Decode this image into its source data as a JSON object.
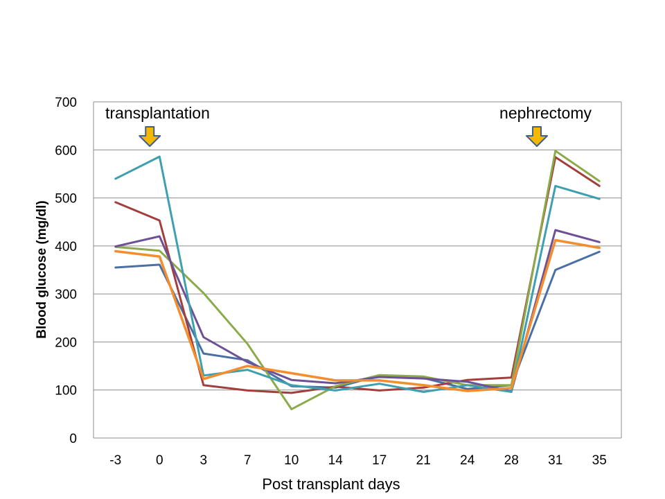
{
  "chart_data": {
    "type": "line",
    "title": "",
    "xlabel": "Post transplant days",
    "ylabel": "Blood glucose (mg/dl)",
    "x": [
      "-3",
      "0",
      "3",
      "7",
      "10",
      "14",
      "17",
      "21",
      "24",
      "28",
      "31",
      "35"
    ],
    "ylim": [
      0,
      700
    ],
    "yticks": [
      0,
      100,
      200,
      300,
      400,
      500,
      600,
      700
    ],
    "grid": true,
    "legend": "none",
    "annotations": [
      {
        "text": "transplantation",
        "at_x": "0",
        "marker": "down-arrow"
      },
      {
        "text": "nephrectomy",
        "at_x": "28-31",
        "marker": "down-arrow"
      }
    ],
    "series": [
      {
        "color": "#4A6FA5",
        "values": [
          355,
          361,
          176,
          162,
          108,
          105,
          130,
          125,
          102,
          110,
          350,
          388
        ]
      },
      {
        "color": "#A23E3B",
        "values": [
          491,
          453,
          110,
          99,
          94,
          107,
          99,
          105,
          121,
          126,
          585,
          525
        ]
      },
      {
        "color": "#8BAA4A",
        "values": [
          398,
          390,
          302,
          196,
          60,
          108,
          131,
          128,
          110,
          110,
          598,
          535
        ]
      },
      {
        "color": "#6E5096",
        "values": [
          399,
          420,
          210,
          158,
          121,
          114,
          127,
          124,
          117,
          97,
          433,
          408
        ]
      },
      {
        "color": "#3E9FB0",
        "values": [
          540,
          586,
          130,
          142,
          110,
          99,
          113,
          96,
          110,
          96,
          525,
          498
        ]
      },
      {
        "color": "#F28E2E",
        "values": [
          389,
          378,
          123,
          150,
          135,
          120,
          120,
          110,
          98,
          104,
          412,
          396
        ]
      }
    ],
    "arrow_color": "#F5B800",
    "arrow_outline": "#3F5F8F"
  }
}
